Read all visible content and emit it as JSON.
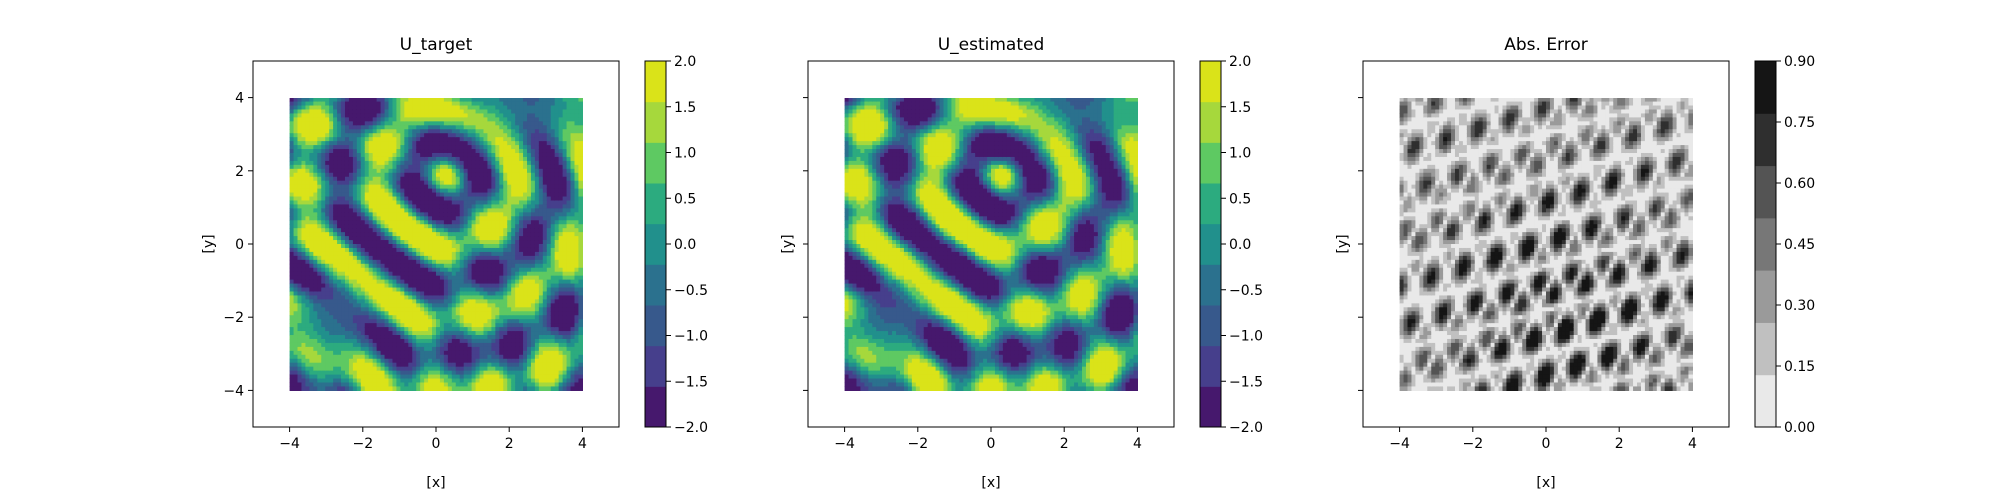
{
  "chart_data": [
    {
      "type": "heatmap",
      "title": "U_target",
      "xlabel": "[x]",
      "ylabel": "[y]",
      "xlim": [
        -5,
        5
      ],
      "ylim": [
        -5,
        5
      ],
      "x_ticks": [
        "−4",
        "−2",
        "0",
        "2",
        "4"
      ],
      "y_ticks": [
        "4",
        "2",
        "0",
        "−2",
        "−4"
      ],
      "show_y_tick_labels": true,
      "data_extent": {
        "x": [
          -4,
          4
        ],
        "y": [
          -4,
          4
        ]
      },
      "colormap": "viridis",
      "colorbar": {
        "ticks": [
          "2.0",
          "1.5",
          "1.0",
          "0.5",
          "0.0",
          "−0.5",
          "−1.0",
          "−1.5",
          "−2.0"
        ],
        "levels": [
          -2.0,
          -1.5,
          -1.0,
          -0.5,
          0.0,
          0.5,
          1.0,
          1.5,
          2.0
        ],
        "colors": [
          "#46186d",
          "#463f8c",
          "#37598c",
          "#2b718e",
          "#21908c",
          "#2cab7f",
          "#5ec962",
          "#a6d83c",
          "#dae319"
        ]
      }
    },
    {
      "type": "heatmap",
      "title": "U_estimated",
      "xlabel": "[x]",
      "ylabel": "[y]",
      "xlim": [
        -5,
        5
      ],
      "ylim": [
        -5,
        5
      ],
      "x_ticks": [
        "−4",
        "−2",
        "0",
        "2",
        "4"
      ],
      "y_ticks": [
        "4",
        "2",
        "0",
        "−2",
        "−4"
      ],
      "show_y_tick_labels": false,
      "data_extent": {
        "x": [
          -4,
          4
        ],
        "y": [
          -4,
          4
        ]
      },
      "colormap": "viridis",
      "colorbar": {
        "ticks": [
          "2.0",
          "1.5",
          "1.0",
          "0.5",
          "0.0",
          "−0.5",
          "−1.0",
          "−1.5",
          "−2.0"
        ],
        "levels": [
          -2.0,
          -1.5,
          -1.0,
          -0.5,
          0.0,
          0.5,
          1.0,
          1.5,
          2.0
        ],
        "colors": [
          "#46186d",
          "#463f8c",
          "#37598c",
          "#2b718e",
          "#21908c",
          "#2cab7f",
          "#5ec962",
          "#a6d83c",
          "#dae319"
        ]
      }
    },
    {
      "type": "heatmap",
      "title": "Abs. Error",
      "xlabel": "[x]",
      "ylabel": "[y]",
      "xlim": [
        -5,
        5
      ],
      "ylim": [
        -5,
        5
      ],
      "x_ticks": [
        "−4",
        "−2",
        "0",
        "2",
        "4"
      ],
      "y_ticks": [
        "4",
        "2",
        "0",
        "−2",
        "−4"
      ],
      "show_y_tick_labels": false,
      "data_extent": {
        "x": [
          -4,
          4
        ],
        "y": [
          -4,
          4
        ]
      },
      "colormap": "greys",
      "colorbar": {
        "ticks": [
          "0.90",
          "0.75",
          "0.60",
          "0.45",
          "0.30",
          "0.15",
          "0.00"
        ],
        "levels": [
          0.0,
          0.15,
          0.3,
          0.45,
          0.6,
          0.75,
          0.9
        ],
        "colors": [
          "#e9e9e9",
          "#c0c0c0",
          "#9a9a9a",
          "#777777",
          "#545454",
          "#2f2f2f",
          "#151515"
        ]
      }
    }
  ]
}
